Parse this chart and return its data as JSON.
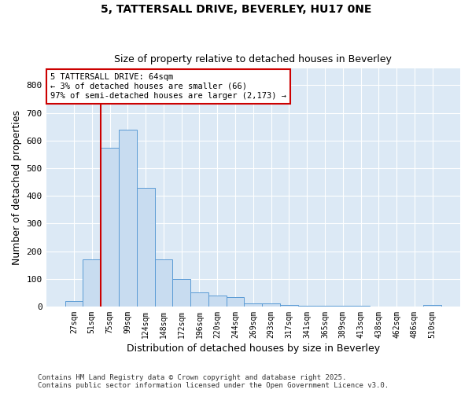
{
  "title1": "5, TATTERSALL DRIVE, BEVERLEY, HU17 0NE",
  "title2": "Size of property relative to detached houses in Beverley",
  "xlabel": "Distribution of detached houses by size in Beverley",
  "ylabel": "Number of detached properties",
  "annotation_line1": "5 TATTERSALL DRIVE: 64sqm",
  "annotation_line2": "← 3% of detached houses are smaller (66)",
  "annotation_line3": "97% of semi-detached houses are larger (2,173) →",
  "bar_color": "#c8dcf0",
  "bar_edge_color": "#5b9bd5",
  "vline_color": "#cc0000",
  "bg_color": "#ffffff",
  "plot_bg_color": "#dce9f5",
  "grid_color": "#ffffff",
  "annotation_box_color": "#ffffff",
  "annotation_box_edge": "#cc0000",
  "categories": [
    "27sqm",
    "51sqm",
    "75sqm",
    "99sqm",
    "124sqm",
    "148sqm",
    "172sqm",
    "196sqm",
    "220sqm",
    "244sqm",
    "269sqm",
    "293sqm",
    "317sqm",
    "341sqm",
    "365sqm",
    "389sqm",
    "413sqm",
    "438sqm",
    "462sqm",
    "486sqm",
    "510sqm"
  ],
  "values": [
    20,
    170,
    575,
    640,
    430,
    170,
    100,
    50,
    40,
    35,
    10,
    12,
    5,
    3,
    3,
    3,
    2,
    1,
    0,
    0,
    5
  ],
  "vline_x": 1.5,
  "ylim": [
    0,
    860
  ],
  "yticks": [
    0,
    100,
    200,
    300,
    400,
    500,
    600,
    700,
    800
  ],
  "footer1": "Contains HM Land Registry data © Crown copyright and database right 2025.",
  "footer2": "Contains public sector information licensed under the Open Government Licence v3.0."
}
